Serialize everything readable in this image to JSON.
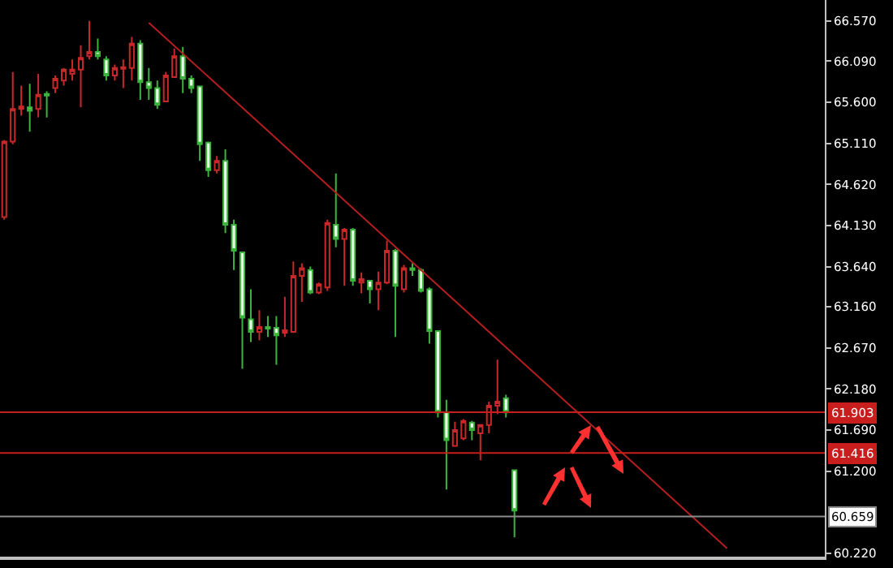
{
  "chart_data": {
    "type": "candlestick",
    "categories": [
      null,
      null,
      null,
      null,
      null,
      null,
      null,
      null,
      null,
      null,
      null,
      null,
      null,
      null,
      null,
      null,
      null,
      null,
      null,
      null,
      null,
      null,
      null,
      null,
      null,
      null,
      null,
      null,
      null,
      null,
      null,
      null,
      null,
      null,
      null,
      null,
      null,
      null,
      null,
      null,
      null,
      null,
      null,
      null,
      null,
      null,
      null,
      null,
      null,
      null,
      null,
      null,
      null,
      null,
      null,
      null,
      null,
      null,
      null,
      null,
      null,
      null,
      null,
      null,
      null,
      null,
      null,
      null,
      null,
      null,
      null,
      null,
      null,
      null,
      null,
      null,
      null,
      null,
      null,
      null,
      null,
      null,
      null,
      null,
      null,
      null,
      null,
      null,
      null,
      null,
      null,
      null,
      null,
      null,
      null,
      null,
      null
    ],
    "ohlc": [
      [
        64.23,
        65.15,
        64.2,
        65.13
      ],
      [
        65.13,
        65.96,
        65.1,
        65.52
      ],
      [
        65.52,
        65.8,
        65.44,
        65.55
      ],
      [
        65.54,
        65.82,
        65.25,
        65.5
      ],
      [
        65.52,
        65.94,
        65.42,
        65.69
      ],
      [
        65.7,
        65.73,
        65.42,
        65.68
      ],
      [
        65.77,
        65.92,
        65.71,
        65.88
      ],
      [
        65.86,
        66.01,
        65.8,
        65.99
      ],
      [
        65.94,
        66.11,
        65.86,
        65.99
      ],
      [
        65.99,
        66.28,
        65.54,
        66.13
      ],
      [
        66.15,
        66.57,
        66.11,
        66.2
      ],
      [
        66.2,
        66.36,
        66.11,
        66.15
      ],
      [
        66.11,
        66.15,
        65.86,
        65.92
      ],
      [
        65.92,
        66.05,
        65.86,
        66.01
      ],
      [
        66.0,
        66.11,
        65.77,
        66.02
      ],
      [
        66.01,
        66.38,
        65.86,
        66.3
      ],
      [
        66.3,
        66.34,
        65.63,
        65.84
      ],
      [
        65.84,
        66.01,
        65.63,
        65.77
      ],
      [
        65.77,
        65.86,
        65.52,
        65.57
      ],
      [
        65.61,
        65.96,
        65.61,
        65.92
      ],
      [
        65.9,
        66.24,
        65.9,
        66.15
      ],
      [
        66.15,
        66.26,
        65.71,
        65.88
      ],
      [
        65.88,
        65.92,
        65.71,
        65.77
      ],
      [
        65.79,
        65.8,
        64.9,
        65.1
      ],
      [
        65.12,
        65.13,
        64.71,
        64.79
      ],
      [
        64.79,
        64.96,
        64.75,
        64.9
      ],
      [
        64.9,
        65.04,
        64.04,
        64.14
      ],
      [
        64.14,
        64.2,
        63.6,
        63.83
      ],
      [
        63.81,
        63.81,
        62.42,
        63.03
      ],
      [
        63.01,
        63.37,
        62.74,
        62.86
      ],
      [
        62.86,
        63.12,
        62.76,
        62.92
      ],
      [
        62.92,
        63.05,
        62.8,
        62.9
      ],
      [
        62.91,
        63.05,
        62.47,
        62.82
      ],
      [
        62.85,
        63.28,
        62.8,
        62.88
      ],
      [
        62.86,
        63.7,
        62.85,
        63.53
      ],
      [
        63.53,
        63.68,
        63.22,
        63.62
      ],
      [
        63.6,
        63.64,
        63.31,
        63.33
      ],
      [
        63.33,
        63.45,
        63.31,
        63.43
      ],
      [
        63.39,
        64.2,
        63.35,
        64.16
      ],
      [
        64.14,
        64.75,
        63.87,
        63.97
      ],
      [
        63.97,
        64.1,
        63.41,
        64.08
      ],
      [
        64.08,
        64.1,
        63.41,
        63.47
      ],
      [
        63.45,
        63.57,
        63.32,
        63.49
      ],
      [
        63.47,
        63.47,
        63.2,
        63.37
      ],
      [
        63.37,
        63.58,
        63.12,
        63.45
      ],
      [
        63.45,
        63.95,
        63.43,
        63.83
      ],
      [
        63.83,
        63.85,
        62.8,
        63.41
      ],
      [
        63.37,
        63.66,
        63.33,
        63.62
      ],
      [
        63.62,
        63.68,
        63.53,
        63.6
      ],
      [
        63.6,
        63.62,
        63.33,
        63.35
      ],
      [
        63.37,
        63.39,
        62.72,
        62.87
      ],
      [
        62.87,
        62.88,
        61.84,
        61.9
      ],
      [
        61.9,
        62.05,
        60.98,
        61.57
      ],
      [
        61.5,
        61.79,
        61.5,
        61.69
      ],
      [
        61.59,
        61.82,
        61.57,
        61.8
      ],
      [
        61.78,
        61.8,
        61.57,
        61.69
      ],
      [
        61.65,
        61.75,
        61.33,
        61.75
      ],
      [
        61.75,
        62.03,
        61.65,
        61.98
      ],
      [
        61.98,
        62.53,
        61.88,
        62.03
      ],
      [
        62.07,
        62.11,
        61.84,
        61.9
      ],
      [
        61.21,
        61.21,
        60.41,
        60.73
      ],
      null,
      null,
      null,
      null,
      null,
      null,
      null,
      null,
      null,
      null,
      null,
      null,
      null,
      null,
      null,
      null,
      null,
      null,
      null,
      null,
      null,
      null,
      null,
      null,
      null,
      null,
      null,
      null,
      null,
      null,
      null,
      null,
      null,
      null,
      null,
      null
    ],
    "colors": [
      "#c8282a",
      "#c8282a",
      "#c8282a",
      "#3cb43c",
      "#c8282a",
      "#3cb43c",
      "#c8282a",
      "#c8282a",
      "#c8282a",
      "#c8282a",
      "#c8282a",
      "#3cb43c",
      "#3cb43c",
      "#c8282a",
      "#c8282a",
      "#c8282a",
      "#3cb43c",
      "#3cb43c",
      "#3cb43c",
      "#c8282a",
      "#c8282a",
      "#3cb43c",
      "#3cb43c",
      "#3cb43c",
      "#3cb43c",
      "#c8282a",
      "#3cb43c",
      "#3cb43c",
      "#3cb43c",
      "#3cb43c",
      "#c8282a",
      "#3cb43c",
      "#3cb43c",
      "#c8282a",
      "#c8282a",
      "#c8282a",
      "#3cb43c",
      "#c8282a",
      "#c8282a",
      "#3cb43c",
      "#c8282a",
      "#3cb43c",
      "#c8282a",
      "#3cb43c",
      "#c8282a",
      "#c8282a",
      "#3cb43c",
      "#c8282a",
      "#3cb43c",
      "#3cb43c",
      "#3cb43c",
      "#3cb43c",
      "#3cb43c",
      "#c8282a",
      "#c8282a",
      "#3cb43c",
      "#c8282a",
      "#c8282a",
      "#c8282a",
      "#3cb43c",
      "#3cb43c",
      null,
      null,
      null,
      null,
      null,
      null,
      null,
      null,
      null,
      null,
      null,
      null,
      null,
      null,
      null,
      null,
      null,
      null,
      null,
      null,
      null,
      null,
      null,
      null,
      null,
      null,
      null,
      null,
      null,
      null,
      null,
      null,
      null,
      null,
      null,
      null
    ],
    "series": [
      {
        "type": "line",
        "color": "#b41e1e",
        "values": [
          null,
          null,
          null,
          null,
          null,
          null,
          null,
          null,
          null,
          null,
          null,
          null,
          null,
          null,
          null,
          null,
          null,
          66.55,
          null,
          null,
          null,
          null,
          null,
          null,
          null,
          null,
          null,
          null,
          null,
          null,
          null,
          null,
          null,
          null,
          null,
          null,
          null,
          null,
          null,
          null,
          null,
          null,
          null,
          null,
          null,
          null,
          null,
          null,
          null,
          null,
          null,
          null,
          null,
          null,
          null,
          null,
          null,
          null,
          null,
          null,
          null,
          null,
          null,
          null,
          null,
          null,
          null,
          null,
          null,
          null,
          null,
          null,
          null,
          null,
          null,
          null,
          null,
          null,
          null,
          null,
          null,
          null,
          null,
          null,
          null,
          60.28,
          null,
          null,
          null,
          null,
          null,
          null,
          null,
          null,
          null,
          null,
          null
        ]
      }
    ],
    "ylim": [
      60.18,
      66.82
    ],
    "yticks": [
      {
        "value": 66.57,
        "label": "66.570"
      },
      {
        "value": 66.09,
        "label": "66.090"
      },
      {
        "value": 65.6,
        "label": "65.600"
      },
      {
        "value": 65.11,
        "label": "65.110"
      },
      {
        "value": 64.62,
        "label": "64.620"
      },
      {
        "value": 64.13,
        "label": "64.130"
      },
      {
        "value": 63.64,
        "label": "63.640"
      },
      {
        "value": 63.16,
        "label": "63.160"
      },
      {
        "value": 62.67,
        "label": "62.670"
      },
      {
        "value": 62.18,
        "label": "62.180"
      },
      {
        "value": 61.69,
        "label": "61.690"
      },
      {
        "value": 61.2,
        "label": "61.200"
      },
      {
        "value": 60.22,
        "label": "60.220"
      }
    ],
    "ref_lines": [
      {
        "axis": "y",
        "value": 61.903,
        "label": "61.903",
        "color": "#c81e1e"
      },
      {
        "axis": "y",
        "value": 61.416,
        "label": "61.416",
        "color": "#c81e1e"
      },
      {
        "axis": "y",
        "value": 60.659,
        "label": "60.659",
        "color": "#8c8c8c"
      }
    ],
    "tick_labels": "y"
  }
}
